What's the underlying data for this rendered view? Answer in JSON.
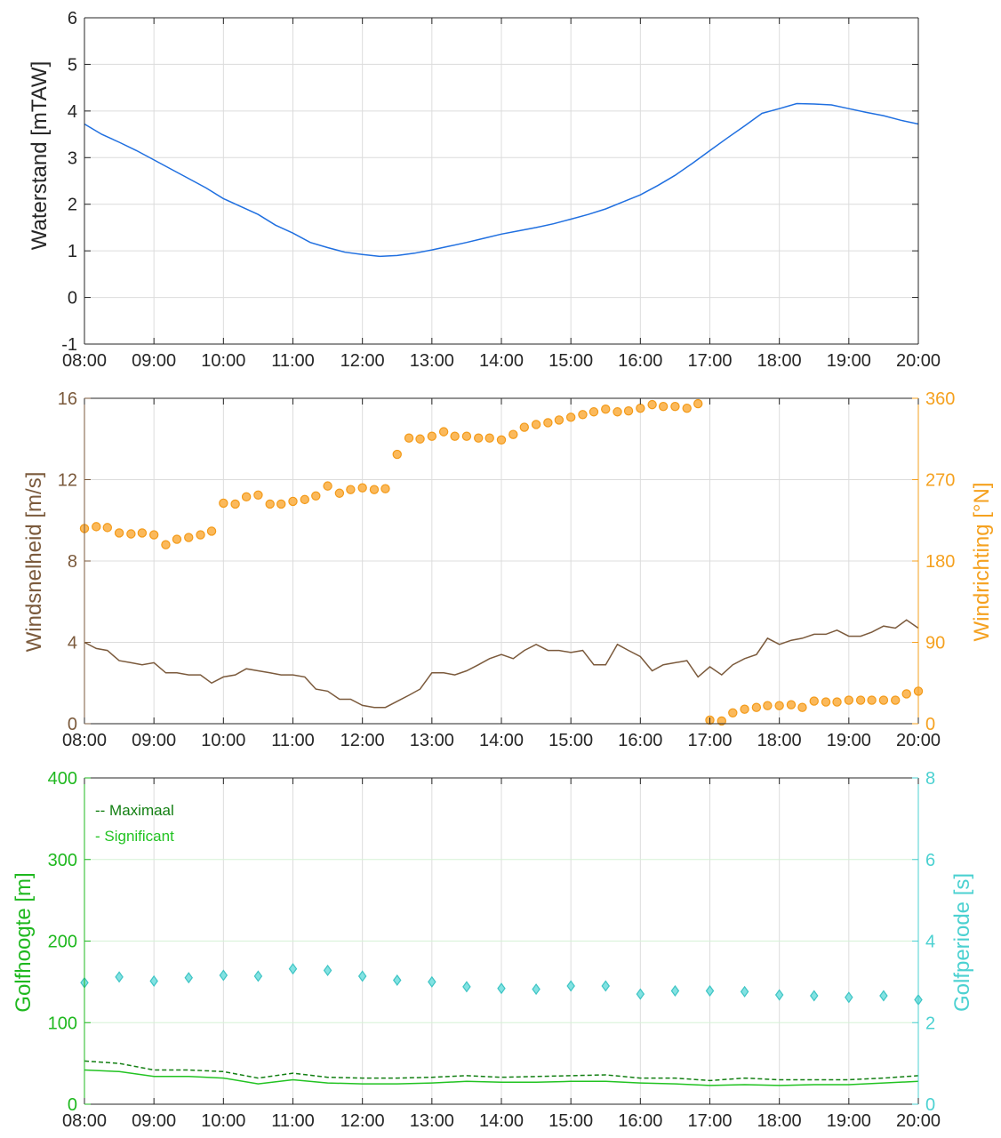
{
  "chart_data": [
    {
      "type": "line",
      "ylabel": "Waterstand [mTAW]",
      "xlabel": "",
      "x_ticks": [
        "08:00",
        "09:00",
        "10:00",
        "11:00",
        "12:00",
        "13:00",
        "14:00",
        "15:00",
        "16:00",
        "17:00",
        "18:00",
        "19:00",
        "20:00"
      ],
      "xlim": [
        8,
        20
      ],
      "ylim": [
        -1,
        6
      ],
      "yticks": [
        -1,
        0,
        1,
        2,
        3,
        4,
        5,
        6
      ],
      "grid": true,
      "colors": {
        "line": "#1f6fe0"
      },
      "series": [
        {
          "x": [
            8,
            8.25,
            8.5,
            8.75,
            9,
            9.25,
            9.5,
            9.75,
            10,
            10.25,
            10.5,
            10.75,
            11,
            11.25,
            11.5,
            11.75,
            12,
            12.25,
            12.5,
            12.75,
            13,
            13.25,
            13.5,
            13.75,
            14,
            14.25,
            14.5,
            14.75,
            15,
            15.25,
            15.5,
            15.75,
            16,
            16.25,
            16.5,
            16.75,
            17,
            17.25,
            17.5,
            17.75,
            18,
            18.25,
            18.5,
            18.75,
            19,
            19.25,
            19.5,
            19.75,
            20
          ],
          "values": [
            3.72,
            3.5,
            3.33,
            3.15,
            2.95,
            2.75,
            2.55,
            2.35,
            2.12,
            1.95,
            1.78,
            1.55,
            1.38,
            1.18,
            1.07,
            0.97,
            0.92,
            0.88,
            0.9,
            0.95,
            1.02,
            1.1,
            1.18,
            1.27,
            1.36,
            1.43,
            1.5,
            1.58,
            1.68,
            1.78,
            1.9,
            2.05,
            2.2,
            2.4,
            2.62,
            2.88,
            3.15,
            3.42,
            3.68,
            3.95,
            4.05,
            4.16,
            4.15,
            4.13,
            4.05,
            3.97,
            3.9,
            3.8,
            3.72
          ]
        }
      ]
    },
    {
      "type": "line",
      "ylabel": "Windsnelheid [m/s]",
      "ylabel_right": "Windrichting [°N]",
      "x_ticks": [
        "08:00",
        "09:00",
        "10:00",
        "11:00",
        "12:00",
        "13:00",
        "14:00",
        "15:00",
        "16:00",
        "17:00",
        "18:00",
        "19:00",
        "20:00"
      ],
      "xlim": [
        8,
        20
      ],
      "ylim": [
        0,
        16
      ],
      "yticks": [
        0,
        4,
        8,
        12,
        16
      ],
      "ylim_right": [
        0,
        360
      ],
      "yticks_right": [
        0,
        90,
        180,
        270,
        360
      ],
      "grid": true,
      "colors": {
        "speed": "#7b5a3c",
        "direction_fill": "#fbb95b",
        "direction_edge": "#f39a18",
        "left_axis": "#7b5a3c",
        "right_axis": "#f5a11f"
      },
      "series": [
        {
          "name": "speed",
          "x": [
            8,
            8.17,
            8.33,
            8.5,
            8.67,
            8.83,
            9,
            9.17,
            9.33,
            9.5,
            9.67,
            9.83,
            10,
            10.17,
            10.33,
            10.5,
            10.67,
            10.83,
            11,
            11.17,
            11.33,
            11.5,
            11.67,
            11.83,
            12,
            12.17,
            12.33,
            12.5,
            12.67,
            12.83,
            13,
            13.17,
            13.33,
            13.5,
            13.67,
            13.83,
            14,
            14.17,
            14.33,
            14.5,
            14.67,
            14.83,
            15,
            15.17,
            15.33,
            15.5,
            15.67,
            15.83,
            16,
            16.17,
            16.33,
            16.5,
            16.67,
            16.83,
            17,
            17.17,
            17.33,
            17.5,
            17.67,
            17.83,
            18,
            18.17,
            18.33,
            18.5,
            18.67,
            18.83,
            19,
            19.17,
            19.33,
            19.5,
            19.67,
            19.83,
            20
          ],
          "values": [
            4.0,
            3.7,
            3.6,
            3.1,
            3.0,
            2.9,
            3.0,
            2.5,
            2.5,
            2.4,
            2.4,
            2.0,
            2.3,
            2.4,
            2.7,
            2.6,
            2.5,
            2.4,
            2.4,
            2.3,
            1.7,
            1.6,
            1.2,
            1.2,
            0.9,
            0.8,
            0.8,
            1.1,
            1.4,
            1.7,
            2.5,
            2.5,
            2.4,
            2.6,
            2.9,
            3.2,
            3.4,
            3.2,
            3.6,
            3.9,
            3.6,
            3.6,
            3.5,
            3.6,
            2.9,
            2.9,
            3.9,
            3.6,
            3.3,
            2.6,
            2.9,
            3.0,
            3.1,
            2.3,
            2.8,
            2.4,
            2.9,
            3.2,
            3.4,
            4.2,
            3.9,
            4.1,
            4.2,
            4.4,
            4.4,
            4.6,
            4.3,
            4.3,
            4.5,
            4.8,
            4.7,
            5.1,
            4.7
          ]
        },
        {
          "name": "direction",
          "axis": "right",
          "style": "markers",
          "x": [
            8,
            8.17,
            8.33,
            8.5,
            8.67,
            8.83,
            9,
            9.17,
            9.33,
            9.5,
            9.67,
            9.83,
            10,
            10.17,
            10.33,
            10.5,
            10.67,
            10.83,
            11,
            11.17,
            11.33,
            11.5,
            11.67,
            11.83,
            12,
            12.17,
            12.33,
            12.5,
            12.67,
            12.83,
            13,
            13.17,
            13.33,
            13.5,
            13.67,
            13.83,
            14,
            14.17,
            14.33,
            14.5,
            14.67,
            14.83,
            15,
            15.17,
            15.33,
            15.5,
            15.67,
            15.83,
            16,
            16.17,
            16.33,
            16.5,
            16.67,
            16.83,
            17,
            17.17,
            17.33,
            17.5,
            17.67,
            17.83,
            18,
            18.17,
            18.33,
            18.5,
            18.67,
            18.83,
            19,
            19.17,
            19.33,
            19.5,
            19.67,
            19.83,
            20
          ],
          "values": [
            216,
            218,
            217,
            211,
            210,
            211,
            209,
            198,
            204,
            206,
            209,
            213,
            244,
            243,
            251,
            253,
            243,
            243,
            246,
            248,
            252,
            263,
            255,
            259,
            261,
            259,
            260,
            298,
            316,
            315,
            318,
            323,
            318,
            318,
            316,
            316,
            314,
            320,
            328,
            331,
            333,
            336,
            339,
            342,
            345,
            348,
            345,
            346,
            349,
            353,
            351,
            351,
            349,
            354,
            4,
            3,
            12,
            16,
            18,
            20,
            20,
            21,
            18,
            25,
            24,
            24,
            26,
            26,
            26,
            26,
            26,
            33,
            36
          ]
        }
      ]
    },
    {
      "type": "line",
      "ylabel": "Golfhoogte [m]",
      "ylabel_right": "Golfperiode [s]",
      "x_ticks": [
        "08:00",
        "09:00",
        "10:00",
        "11:00",
        "12:00",
        "13:00",
        "14:00",
        "15:00",
        "16:00",
        "17:00",
        "18:00",
        "19:00",
        "20:00"
      ],
      "xlim": [
        8,
        20
      ],
      "ylim": [
        0,
        400
      ],
      "yticks": [
        0,
        100,
        200,
        300,
        400
      ],
      "ylim_right": [
        0,
        8
      ],
      "yticks_right": [
        0,
        2,
        4,
        6,
        8
      ],
      "grid": true,
      "legend": {
        "placement": "top-left",
        "entries": [
          "-- Maximaal",
          "- Significant"
        ]
      },
      "colors": {
        "max": "#127f12",
        "significant": "#22c322",
        "period_fill": "#82e2e2",
        "period_edge": "#3ec4c4",
        "left_axis": "#1fb81f",
        "right_axis": "#4bd1d1"
      },
      "series": [
        {
          "name": "Maximaal",
          "style": "dashed",
          "x": [
            8,
            8.5,
            9,
            9.5,
            10,
            10.5,
            11,
            11.5,
            12,
            12.5,
            13,
            13.5,
            14,
            14.5,
            15,
            15.5,
            16,
            16.5,
            17,
            17.5,
            18,
            18.5,
            19,
            19.5,
            20
          ],
          "values": [
            53,
            50,
            42,
            42,
            40,
            32,
            38,
            33,
            32,
            32,
            33,
            35,
            33,
            34,
            35,
            36,
            32,
            32,
            29,
            32,
            30,
            30,
            30,
            32,
            35
          ]
        },
        {
          "name": "Significant",
          "style": "solid",
          "x": [
            8,
            8.5,
            9,
            9.5,
            10,
            10.5,
            11,
            11.5,
            12,
            12.5,
            13,
            13.5,
            14,
            14.5,
            15,
            15.5,
            16,
            16.5,
            17,
            17.5,
            18,
            18.5,
            19,
            19.5,
            20
          ],
          "values": [
            42,
            40,
            34,
            34,
            32,
            25,
            30,
            26,
            25,
            25,
            26,
            28,
            27,
            27,
            28,
            28,
            26,
            25,
            23,
            24,
            23,
            24,
            24,
            26,
            28
          ]
        },
        {
          "name": "Golfperiode",
          "axis": "right",
          "style": "markers",
          "x": [
            8,
            8.5,
            9,
            9.5,
            10,
            10.5,
            11,
            11.5,
            12,
            12.5,
            13,
            13.5,
            14,
            14.5,
            15,
            15.5,
            16,
            16.5,
            17,
            17.5,
            18,
            18.5,
            19,
            19.5,
            20
          ],
          "values": [
            2.98,
            3.12,
            3.02,
            3.1,
            3.16,
            3.14,
            3.32,
            3.28,
            3.14,
            3.04,
            3.0,
            2.88,
            2.84,
            2.82,
            2.9,
            2.9,
            2.7,
            2.78,
            2.78,
            2.76,
            2.68,
            2.66,
            2.62,
            2.66,
            2.56
          ]
        }
      ]
    }
  ]
}
